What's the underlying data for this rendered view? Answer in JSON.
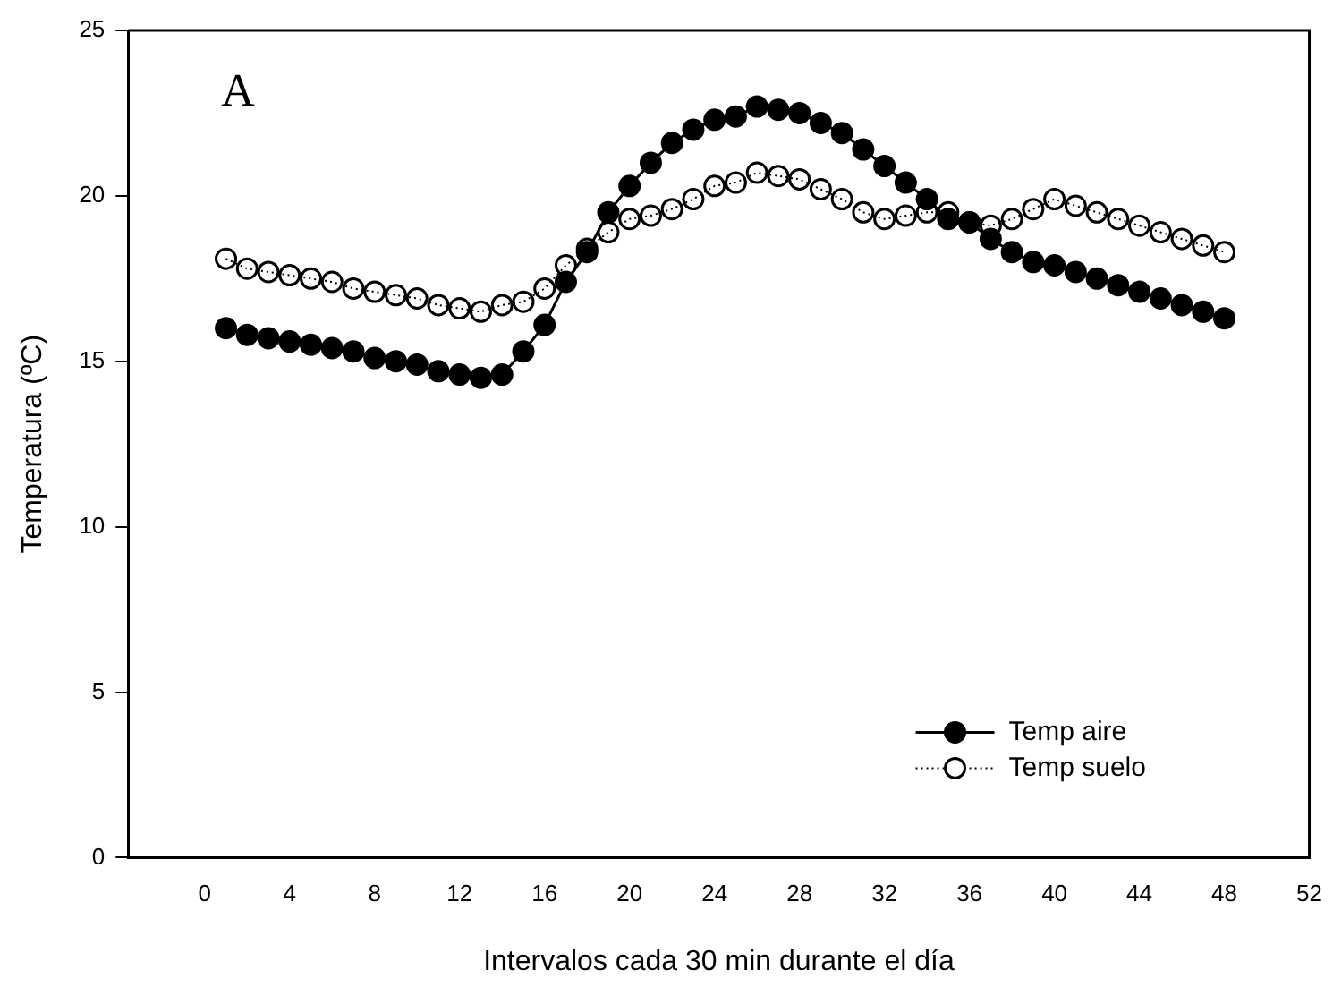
{
  "chart_data": {
    "type": "line",
    "xlabel": "Intervalos cada 30 min durante el día",
    "ylabel": "Temperatura (ºC)",
    "annotations": [
      "A"
    ],
    "xlim": [
      -3.6,
      52
    ],
    "xticks": [
      0,
      4,
      8,
      12,
      16,
      20,
      24,
      28,
      32,
      36,
      40,
      44,
      48,
      52
    ],
    "ylim": [
      0,
      25
    ],
    "yticks": [
      0,
      5,
      10,
      15,
      20,
      25
    ],
    "x": [
      1,
      2,
      3,
      4,
      5,
      6,
      7,
      8,
      9,
      10,
      11,
      12,
      13,
      14,
      15,
      16,
      17,
      18,
      19,
      20,
      21,
      22,
      23,
      24,
      25,
      26,
      27,
      28,
      29,
      30,
      31,
      32,
      33,
      34,
      35,
      36,
      37,
      38,
      39,
      40,
      41,
      42,
      43,
      44,
      45,
      46,
      47,
      48
    ],
    "grid": false,
    "legend": "bottom right",
    "marker": "circle",
    "series": [
      {
        "name": "Temp aire",
        "color": "#000000",
        "line_style": "solid",
        "values": [
          16.0,
          15.8,
          15.7,
          15.6,
          15.5,
          15.4,
          15.3,
          15.1,
          15.0,
          14.9,
          14.7,
          14.6,
          14.5,
          14.6,
          15.3,
          16.1,
          17.4,
          18.3,
          19.5,
          20.3,
          21.0,
          21.6,
          22.0,
          22.3,
          22.4,
          22.7,
          22.6,
          22.5,
          22.2,
          21.9,
          21.4,
          20.9,
          20.4,
          19.9,
          19.3,
          19.2,
          18.7,
          18.3,
          18.0,
          17.9,
          17.7,
          17.5,
          17.3,
          17.1,
          16.9,
          16.7,
          16.5,
          16.3
        ]
      },
      {
        "name": "Temp suelo",
        "color": "#000000",
        "line_style": "dotted",
        "values": [
          18.1,
          17.8,
          17.7,
          17.6,
          17.5,
          17.4,
          17.2,
          17.1,
          17.0,
          16.9,
          16.7,
          16.6,
          16.5,
          16.7,
          16.8,
          17.2,
          17.9,
          18.4,
          18.9,
          19.3,
          19.4,
          19.6,
          19.9,
          20.3,
          20.4,
          20.7,
          20.6,
          20.5,
          20.2,
          19.9,
          19.5,
          19.3,
          19.4,
          19.5,
          19.5,
          19.2,
          19.1,
          19.3,
          19.6,
          19.9,
          19.7,
          19.5,
          19.3,
          19.1,
          18.9,
          18.7,
          18.5,
          18.3
        ]
      }
    ]
  }
}
